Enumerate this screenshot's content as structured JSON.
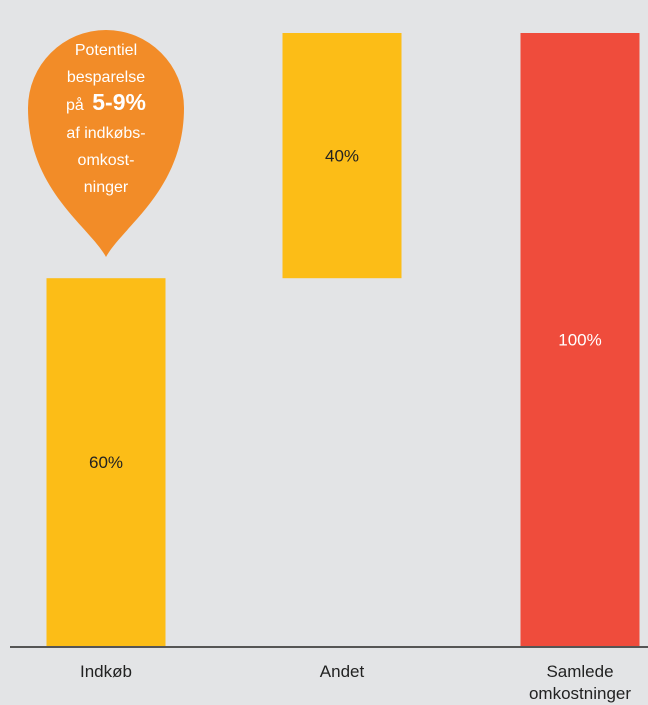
{
  "chart_data": {
    "type": "bar",
    "subtype": "waterfall",
    "categories": [
      "Indkøb",
      "Andet",
      "Samlede omkostninger"
    ],
    "category_lines": [
      [
        "Indkøb"
      ],
      [
        "Andet"
      ],
      [
        "Samlede",
        "omkostninger"
      ]
    ],
    "values": [
      60,
      40,
      100
    ],
    "bases": [
      0,
      60,
      0
    ],
    "labels": [
      "60%",
      "40%",
      "100%"
    ],
    "colors": [
      "#fcbd17",
      "#fcbd17",
      "#ef4c3c"
    ],
    "label_colors": [
      "#222222",
      "#222222",
      "#ffffff"
    ],
    "ylim": [
      0,
      100
    ],
    "grid": false,
    "background": "#e3e4e6",
    "axis_color": "#555555"
  },
  "callout": {
    "color": "#f28c28",
    "prefix_lines": [
      "Potentiel",
      "besparelse"
    ],
    "inline_prefix": "på",
    "highlight": "5-9%",
    "suffix_lines": [
      "af indkøbs-",
      "omkost-",
      "ninger"
    ]
  }
}
